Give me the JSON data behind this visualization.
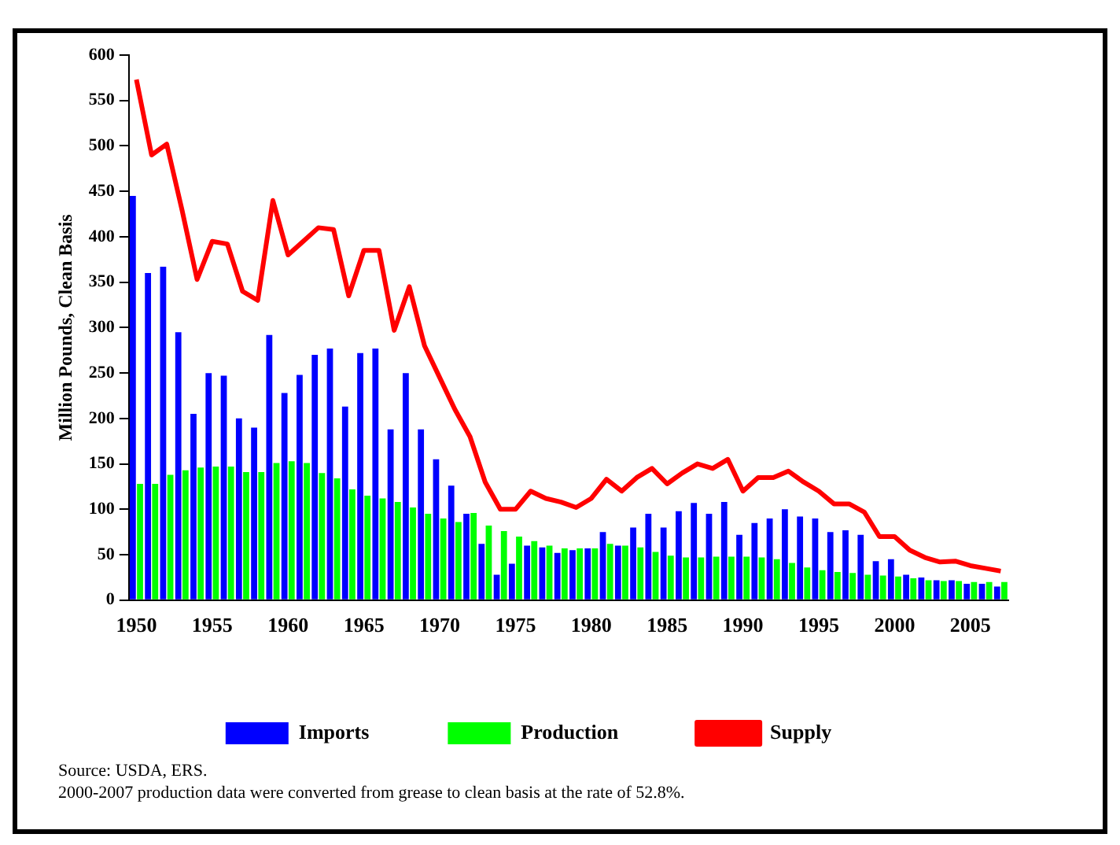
{
  "chart_data": {
    "type": "bar",
    "ylabel": "Million Pounds, Clean Basis",
    "categories": [
      "1950",
      null,
      null,
      null,
      null,
      "1955",
      null,
      null,
      null,
      null,
      "1960",
      null,
      null,
      null,
      null,
      "1965",
      null,
      null,
      null,
      null,
      "1970",
      null,
      null,
      null,
      null,
      "1975",
      null,
      null,
      null,
      null,
      "1980",
      null,
      null,
      null,
      null,
      "1985",
      null,
      null,
      null,
      null,
      "1990",
      null,
      null,
      null,
      null,
      "1995",
      null,
      null,
      null,
      null,
      "2000",
      null,
      null,
      null,
      null,
      "2005",
      null,
      null
    ],
    "series": [
      {
        "name": "Imports",
        "color": "#0000ff",
        "values": [
          445,
          360,
          367,
          295,
          205,
          250,
          247,
          200,
          190,
          292,
          228,
          248,
          270,
          277,
          213,
          272,
          277,
          188,
          250,
          188,
          155,
          126,
          95,
          62,
          28,
          40,
          60,
          58,
          52,
          55,
          57,
          75,
          60,
          80,
          95,
          80,
          98,
          107,
          95,
          108,
          72,
          85,
          90,
          100,
          92,
          90,
          75,
          77,
          72,
          43,
          45,
          28,
          25,
          22,
          22,
          18,
          18,
          15
        ]
      },
      {
        "name": "Production",
        "color": "#00ff00",
        "values": [
          128,
          128,
          138,
          143,
          146,
          147,
          147,
          141,
          141,
          151,
          153,
          151,
          140,
          134,
          122,
          115,
          112,
          108,
          102,
          95,
          90,
          86,
          96,
          82,
          76,
          70,
          65,
          60,
          57,
          57,
          57,
          62,
          60,
          58,
          53,
          49,
          47,
          47,
          48,
          48,
          48,
          47,
          45,
          41,
          36,
          33,
          31,
          30,
          28,
          27,
          26,
          24,
          22,
          21,
          21,
          20,
          20,
          20
        ]
      },
      {
        "name": "Supply",
        "type": "line",
        "color": "#ff0000",
        "values": [
          573,
          490,
          502,
          430,
          353,
          395,
          392,
          340,
          330,
          440,
          380,
          395,
          410,
          408,
          335,
          385,
          385,
          297,
          345,
          280,
          245,
          210,
          180,
          130,
          100,
          100,
          120,
          112,
          108,
          102,
          112,
          133,
          120,
          135,
          145,
          128,
          140,
          150,
          145,
          155,
          120,
          135,
          135,
          142,
          130,
          120,
          106,
          106,
          97,
          70,
          70,
          55,
          47,
          42,
          43,
          38,
          35,
          32
        ]
      }
    ],
    "ylim": [
      0,
      600
    ],
    "yticks": [
      0,
      50,
      100,
      150,
      200,
      250,
      300,
      350,
      400,
      450,
      500,
      550,
      600
    ],
    "legend": "bottom",
    "grid": false,
    "marker": "none",
    "line_style": "solid",
    "annotations": [
      "Source: USDA, ERS.",
      "2000-2007 production data were converted from grease to clean basis at the rate of 52.8%."
    ]
  }
}
